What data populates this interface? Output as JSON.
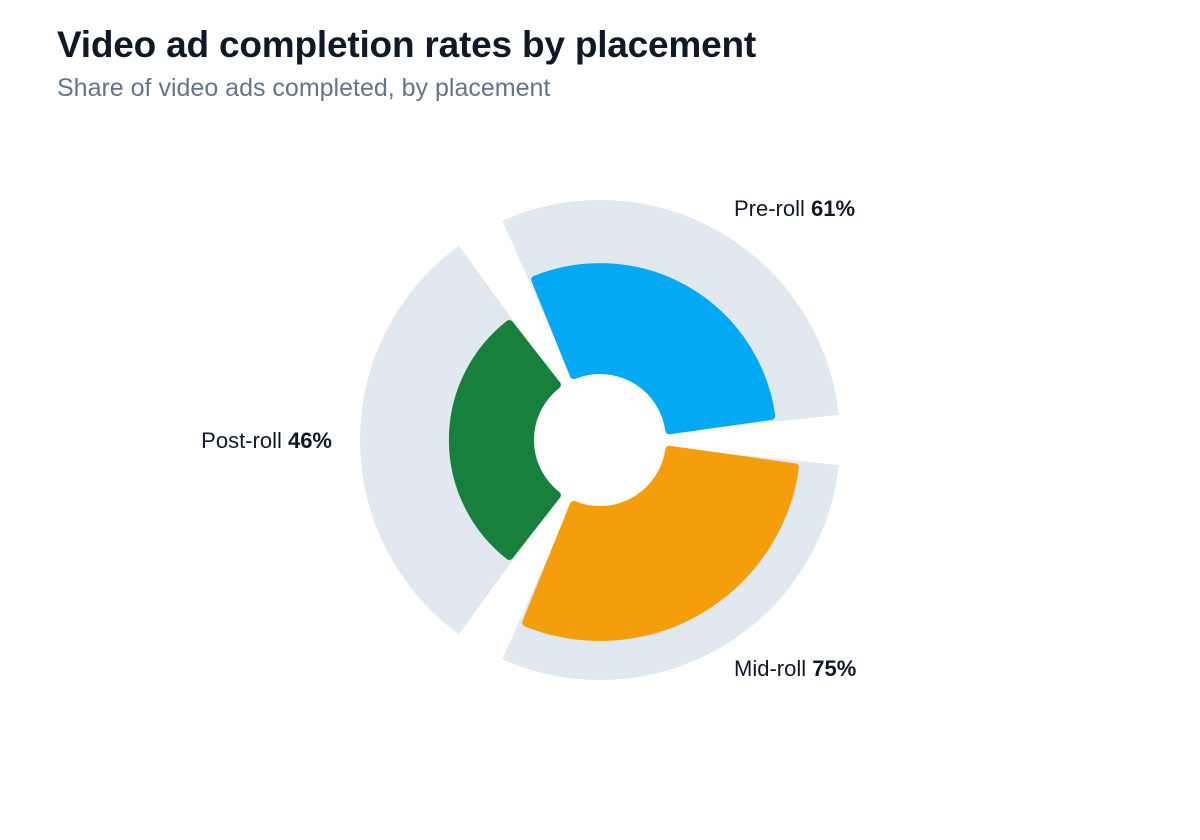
{
  "chart_data": {
    "type": "radial-bar",
    "title": "Video ad completion rates by placement",
    "subtitle": "Share of video ads completed, by placement",
    "value_max": 100,
    "value_suffix": "%",
    "categories": [
      "Pre-roll",
      "Mid-roll",
      "Post-roll"
    ],
    "values": [
      61,
      75,
      46
    ],
    "colors": [
      "#03a9f4",
      "#f59e0b",
      "#16803c"
    ],
    "track_color": "#e2e8f0"
  }
}
